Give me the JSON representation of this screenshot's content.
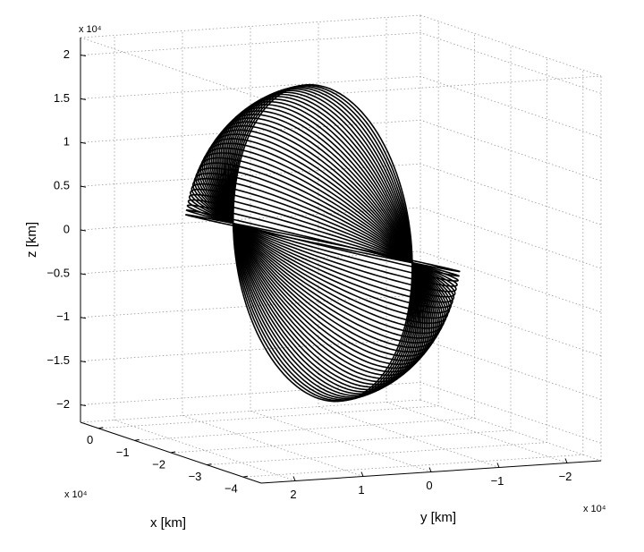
{
  "chart_data": {
    "type": "orbit3d",
    "xlabel": "x [km]",
    "ylabel": "y [km]",
    "zlabel": "z [km]",
    "multiplier_label": "x 10⁴",
    "color": "#000000",
    "grid": true,
    "xlim": [
      0.5,
      -4.5
    ],
    "ylim": [
      2.5,
      -2.5
    ],
    "zlim": [
      -2.2,
      2.2
    ],
    "xticks": [
      0,
      {
        "value": -1,
        "label": "−1"
      },
      {
        "value": -2,
        "label": "−2"
      },
      {
        "value": -3,
        "label": "−3"
      },
      {
        "value": -4,
        "label": "−4"
      }
    ],
    "yticks": [
      2,
      1,
      0,
      {
        "value": -1,
        "label": "−1"
      },
      {
        "value": -2,
        "label": "−2"
      }
    ],
    "zticks": [
      {
        "value": -2,
        "label": "−2"
      },
      {
        "value": -1.5,
        "label": "−1.5"
      },
      {
        "value": -1,
        "label": "−1"
      },
      {
        "value": -0.5,
        "label": "−0.5"
      },
      0,
      0.5,
      1,
      1.5,
      2
    ]
  }
}
